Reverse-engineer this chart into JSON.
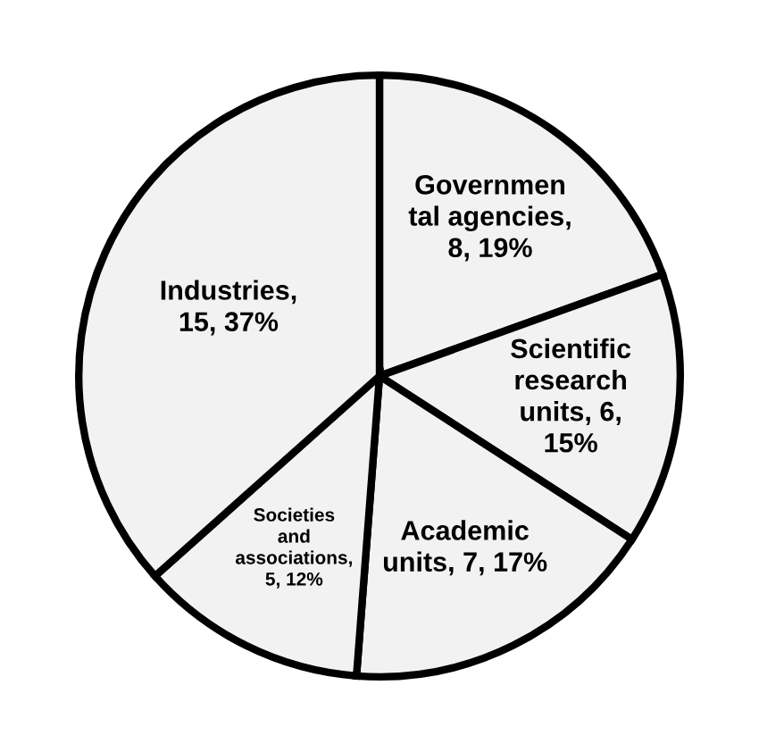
{
  "chart_data": {
    "type": "pie",
    "categories": [
      "Governmen\ntal agencies",
      "Scientific\nresearch\nunits",
      "Academic\nunits",
      "Societies\nand\nassociations",
      "Industries"
    ],
    "values": [
      8,
      6,
      7,
      5,
      15
    ],
    "value_labels": [
      ",\n8, 19%",
      ", 6,\n15%",
      ", 7, 17%",
      ",\n5, 12%",
      ",\n15, 37%"
    ],
    "colors": [
      "#f2f2f2",
      "#f2f2f2",
      "#f2f2f2",
      "#f2f2f2",
      "#f2f2f2"
    ]
  }
}
